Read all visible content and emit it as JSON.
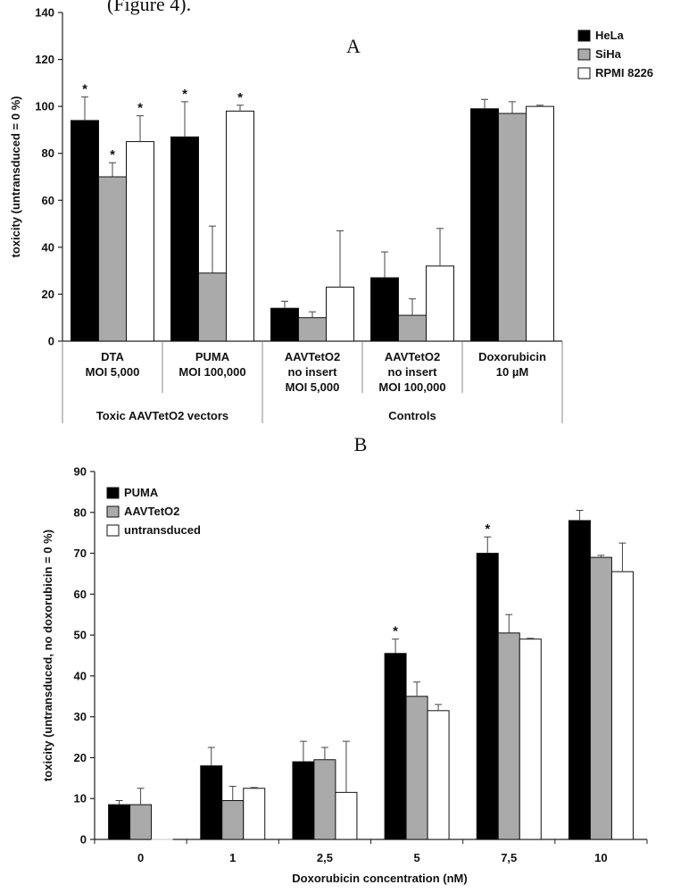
{
  "header_fragment": "(Figure 4).",
  "chart_data": [
    {
      "type": "bar",
      "panel": "A",
      "ylabel": "toxicity (untransduced = 0 %)",
      "ylim": [
        0,
        140
      ],
      "yticks": [
        0,
        20,
        40,
        60,
        80,
        100,
        120,
        140
      ],
      "categories": [
        [
          "DTA",
          "MOI 5,000"
        ],
        [
          "PUMA",
          "MOI 100,000"
        ],
        [
          "AAVTetO2",
          "no insert",
          "MOI 5,000"
        ],
        [
          "AAVTetO2",
          "no insert",
          "MOI 100,000"
        ],
        [
          "Doxorubicin",
          "10 µM"
        ]
      ],
      "groups": [
        {
          "label": "Toxic AAVTetO2 vectors",
          "span": [
            0,
            1
          ]
        },
        {
          "label": "Controls",
          "span": [
            2,
            4
          ]
        }
      ],
      "legend": {
        "position": "top-right",
        "entries": [
          "HeLa",
          "SiHa",
          "RPMI 8226"
        ]
      },
      "series": [
        {
          "name": "HeLa",
          "color": "#000000",
          "values": [
            94,
            87,
            14,
            27,
            99
          ],
          "errors": [
            10,
            15,
            3,
            11,
            4
          ],
          "significant": [
            true,
            true,
            false,
            false,
            false
          ]
        },
        {
          "name": "SiHa",
          "color": "#aaaaaa",
          "values": [
            70,
            29,
            10,
            11,
            97
          ],
          "errors": [
            6,
            20,
            2.5,
            7,
            5
          ],
          "significant": [
            true,
            false,
            false,
            false,
            false
          ]
        },
        {
          "name": "RPMI 8226",
          "color": "#ffffff",
          "values": [
            85,
            98,
            23,
            32,
            100
          ],
          "errors": [
            11,
            2.5,
            24,
            16,
            0.5
          ],
          "significant": [
            true,
            true,
            false,
            false,
            false
          ]
        }
      ],
      "marker": "*"
    },
    {
      "type": "bar",
      "panel": "B",
      "ylabel": "toxicity (untransduced, no doxorubicin = 0 %)",
      "xlabel": "Doxorubicin concentration (nM)",
      "ylim": [
        0,
        90
      ],
      "yticks": [
        0,
        10,
        20,
        30,
        40,
        50,
        60,
        70,
        80,
        90
      ],
      "categories": [
        "0",
        "1",
        "2,5",
        "5",
        "7,5",
        "10"
      ],
      "legend": {
        "position": "top-left",
        "entries": [
          "PUMA",
          "AAVTetO2",
          "untransduced"
        ]
      },
      "series": [
        {
          "name": "PUMA",
          "color": "#000000",
          "values": [
            8.5,
            18,
            19,
            45.5,
            70,
            78
          ],
          "errors": [
            1,
            4.5,
            5,
            3.5,
            4,
            2.5
          ],
          "significant": [
            false,
            false,
            false,
            true,
            true,
            false
          ]
        },
        {
          "name": "AAVTetO2",
          "color": "#aaaaaa",
          "values": [
            8.5,
            9.5,
            19.5,
            35,
            50.5,
            69
          ],
          "errors": [
            4,
            3.5,
            3,
            3.5,
            4.5,
            0.5
          ],
          "significant": [
            false,
            false,
            false,
            false,
            false,
            false
          ]
        },
        {
          "name": "untransduced",
          "color": "#ffffff",
          "values": [
            0,
            12.5,
            11.5,
            31.5,
            49,
            65.5
          ],
          "errors": [
            0,
            0.2,
            12.5,
            1.5,
            0.2,
            7
          ],
          "significant": [
            false,
            false,
            false,
            false,
            false,
            false
          ]
        }
      ],
      "marker": "*"
    }
  ]
}
